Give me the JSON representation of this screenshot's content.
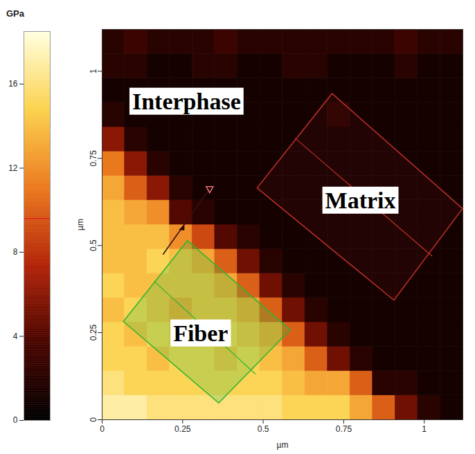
{
  "chart_data": {
    "type": "heatmap",
    "xlabel": "µm",
    "ylabel": "µm",
    "xlim": [
      0,
      1.12
    ],
    "ylim": [
      0,
      1.12
    ],
    "xticks": [
      0,
      0.25,
      0.5,
      0.75,
      1
    ],
    "yticks": [
      0,
      0.25,
      0.5,
      0.75,
      1
    ],
    "x_bins": [
      0,
      0.07,
      0.14,
      0.21,
      0.28,
      0.35,
      0.42,
      0.49,
      0.56,
      0.63,
      0.7,
      0.77,
      0.84,
      0.91,
      0.98,
      1.05,
      1.12
    ],
    "y_bins": [
      0,
      0.07,
      0.14,
      0.21,
      0.28,
      0.35,
      0.42,
      0.49,
      0.56,
      0.63,
      0.7,
      0.77,
      0.84,
      0.91,
      0.98,
      1.05,
      1.12
    ],
    "values": [
      [
        17,
        17,
        16,
        16,
        16,
        16,
        16,
        16,
        15,
        15,
        15,
        13,
        10,
        5,
        2,
        1
      ],
      [
        16,
        15,
        15,
        15,
        15,
        15,
        15,
        15,
        14,
        13,
        13,
        10,
        2,
        2,
        1,
        1
      ],
      [
        15,
        15,
        14,
        15,
        15,
        14,
        15,
        14,
        13,
        10,
        5,
        2,
        1,
        1,
        1,
        1
      ],
      [
        15,
        14,
        15,
        14,
        15,
        15,
        14,
        13,
        10,
        5,
        2,
        1,
        1,
        1,
        1,
        1
      ],
      [
        14,
        15,
        14,
        13,
        14,
        14,
        13,
        10,
        5,
        2,
        1,
        1,
        1,
        1,
        1,
        1
      ],
      [
        15,
        14,
        14,
        14,
        14,
        13,
        10,
        5,
        2,
        1,
        1,
        1,
        1,
        1,
        1,
        1
      ],
      [
        14,
        14,
        15,
        14,
        13,
        10,
        5,
        2,
        1,
        1,
        1,
        1,
        1,
        1,
        1,
        1
      ],
      [
        14,
        14,
        14,
        12,
        9,
        4,
        2,
        1,
        1,
        1,
        1,
        1,
        1,
        1,
        1,
        1
      ],
      [
        14,
        13,
        12,
        4,
        2,
        1,
        1,
        1,
        1,
        1,
        1,
        1,
        1,
        1,
        1,
        1
      ],
      [
        13,
        10,
        6,
        2,
        1,
        1,
        1,
        1,
        1,
        1,
        1,
        1,
        1,
        1,
        1,
        1
      ],
      [
        11,
        6,
        2,
        1,
        1,
        1,
        1,
        1,
        1,
        1,
        1,
        1,
        1,
        1,
        1,
        1
      ],
      [
        6,
        2,
        1,
        1,
        1,
        1,
        1,
        1,
        1,
        1,
        1,
        1,
        1,
        1,
        1,
        1
      ],
      [
        2,
        1,
        1,
        1,
        1,
        1,
        1,
        1,
        1,
        1,
        2,
        1,
        1,
        1,
        1,
        1
      ],
      [
        1,
        1,
        1,
        1,
        1,
        1,
        1,
        1,
        1,
        1,
        1,
        1,
        1,
        1,
        1,
        1
      ],
      [
        2,
        2,
        1,
        1,
        2,
        2,
        1,
        1,
        2,
        2,
        1,
        1,
        1,
        2,
        1,
        1
      ],
      [
        2,
        3,
        2,
        2,
        2,
        3,
        2,
        2,
        2,
        2,
        2,
        2,
        2,
        3,
        2,
        2
      ]
    ],
    "colorbar": {
      "label": "GPa",
      "range": [
        0,
        18.5
      ],
      "ticks": [
        0,
        4,
        8,
        12,
        16
      ],
      "marker": 9.6
    },
    "annotations": [
      "Interphase",
      "Matrix",
      "Fiber"
    ]
  }
}
